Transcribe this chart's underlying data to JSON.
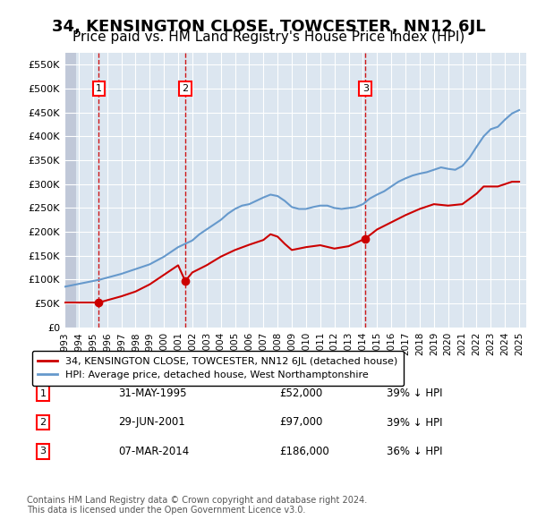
{
  "title": "34, KENSINGTON CLOSE, TOWCESTER, NN12 6JL",
  "subtitle": "Price paid vs. HM Land Registry's House Price Index (HPI)",
  "title_fontsize": 13,
  "subtitle_fontsize": 11,
  "xlim": [
    1993.0,
    2025.5
  ],
  "ylim": [
    0,
    575000
  ],
  "yticks": [
    0,
    50000,
    100000,
    150000,
    200000,
    250000,
    300000,
    350000,
    400000,
    450000,
    500000,
    550000
  ],
  "ytick_labels": [
    "£0",
    "£50K",
    "£100K",
    "£150K",
    "£200K",
    "£250K",
    "£300K",
    "£350K",
    "£400K",
    "£450K",
    "£500K",
    "£550K"
  ],
  "xticks": [
    1993,
    1994,
    1995,
    1996,
    1997,
    1998,
    1999,
    2000,
    2001,
    2002,
    2003,
    2004,
    2005,
    2006,
    2007,
    2008,
    2009,
    2010,
    2011,
    2012,
    2013,
    2014,
    2015,
    2016,
    2017,
    2018,
    2019,
    2020,
    2021,
    2022,
    2023,
    2024,
    2025
  ],
  "background_color": "#ffffff",
  "plot_bg_color": "#dce6f0",
  "hatch_color": "#c0c8d8",
  "grid_color": "#ffffff",
  "red_line_color": "#cc0000",
  "blue_line_color": "#6699cc",
  "transaction_dates": [
    1995.42,
    2001.5,
    2014.18
  ],
  "transaction_prices": [
    52000,
    97000,
    186000
  ],
  "transaction_labels": [
    "1",
    "2",
    "3"
  ],
  "legend_label_red": "34, KENSINGTON CLOSE, TOWCESTER, NN12 6JL (detached house)",
  "legend_label_blue": "HPI: Average price, detached house, West Northamptonshire",
  "table_data": [
    {
      "num": "1",
      "date": "31-MAY-1995",
      "price": "£52,000",
      "hpi": "39% ↓ HPI"
    },
    {
      "num": "2",
      "date": "29-JUN-2001",
      "price": "£97,000",
      "hpi": "39% ↓ HPI"
    },
    {
      "num": "3",
      "date": "07-MAR-2014",
      "price": "£186,000",
      "hpi": "36% ↓ HPI"
    }
  ],
  "footnote": "Contains HM Land Registry data © Crown copyright and database right 2024.\nThis data is licensed under the Open Government Licence v3.0.",
  "hpi_x": [
    1993,
    1993.5,
    1994,
    1994.5,
    1995,
    1995.5,
    1996,
    1996.5,
    1997,
    1997.5,
    1998,
    1998.5,
    1999,
    1999.5,
    2000,
    2000.5,
    2001,
    2001.5,
    2002,
    2002.5,
    2003,
    2003.5,
    2004,
    2004.5,
    2005,
    2005.5,
    2006,
    2006.5,
    2007,
    2007.5,
    2008,
    2008.5,
    2009,
    2009.5,
    2010,
    2010.5,
    2011,
    2011.5,
    2012,
    2012.5,
    2013,
    2013.5,
    2014,
    2014.5,
    2015,
    2015.5,
    2016,
    2016.5,
    2017,
    2017.5,
    2018,
    2018.5,
    2019,
    2019.5,
    2020,
    2020.5,
    2021,
    2021.5,
    2022,
    2022.5,
    2023,
    2023.5,
    2024,
    2024.5,
    2025
  ],
  "hpi_y": [
    85000,
    88000,
    91000,
    94000,
    97000,
    100000,
    104000,
    108000,
    112000,
    117000,
    122000,
    127000,
    132000,
    140000,
    148000,
    158000,
    168000,
    175000,
    182000,
    195000,
    205000,
    215000,
    225000,
    238000,
    248000,
    255000,
    258000,
    265000,
    272000,
    278000,
    275000,
    265000,
    252000,
    248000,
    248000,
    252000,
    255000,
    255000,
    250000,
    248000,
    250000,
    252000,
    258000,
    270000,
    278000,
    285000,
    295000,
    305000,
    312000,
    318000,
    322000,
    325000,
    330000,
    335000,
    332000,
    330000,
    338000,
    355000,
    378000,
    400000,
    415000,
    420000,
    435000,
    448000,
    455000
  ],
  "price_x": [
    1993,
    1995.42,
    1997,
    1998,
    1999,
    2000,
    2001,
    2001.5,
    2002,
    2003,
    2004,
    2005,
    2006,
    2007,
    2007.5,
    2008,
    2008.5,
    2009,
    2010,
    2011,
    2012,
    2013,
    2014.18,
    2015,
    2016,
    2017,
    2018,
    2019,
    2020,
    2021,
    2022,
    2022.5,
    2023,
    2023.5,
    2024,
    2024.5,
    2025
  ],
  "price_y": [
    52000,
    52000,
    65000,
    75000,
    90000,
    110000,
    130000,
    97000,
    115000,
    130000,
    148000,
    162000,
    173000,
    183000,
    195000,
    190000,
    175000,
    162000,
    168000,
    172000,
    165000,
    170000,
    186000,
    205000,
    220000,
    235000,
    248000,
    258000,
    255000,
    258000,
    280000,
    295000,
    295000,
    295000,
    300000,
    305000,
    305000
  ]
}
